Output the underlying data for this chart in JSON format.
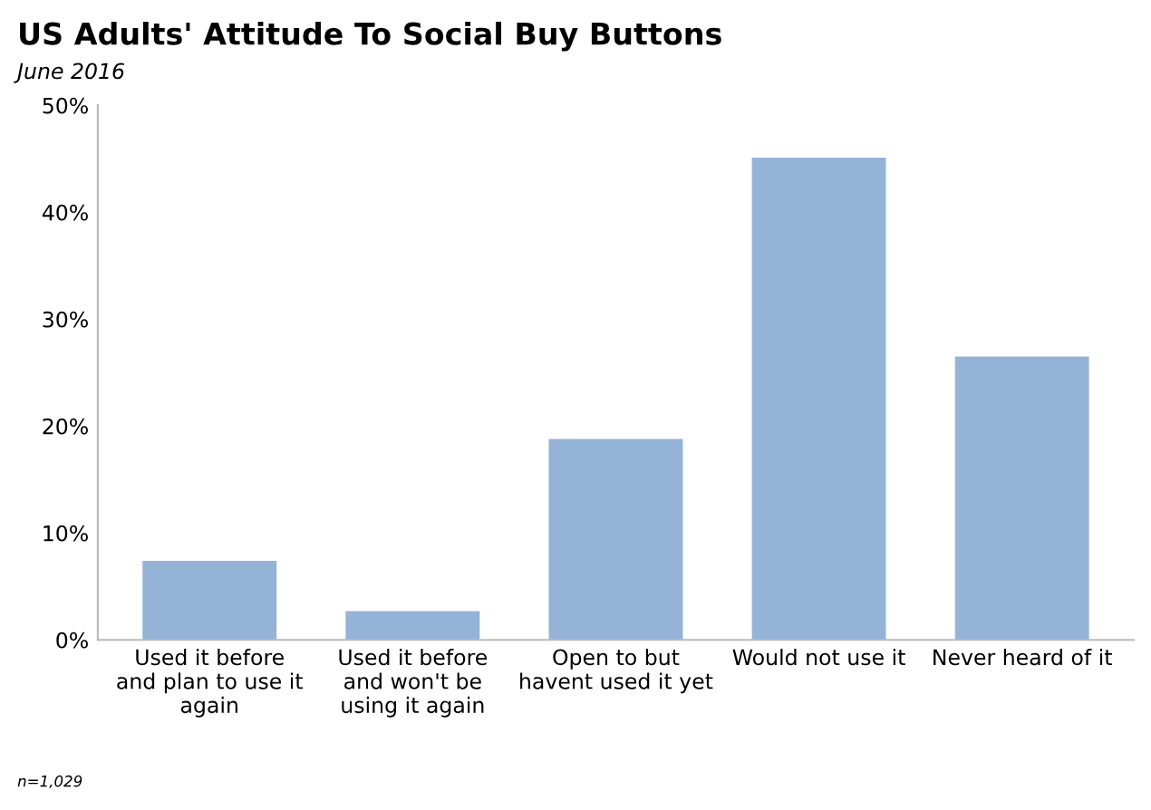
{
  "chart_data": {
    "type": "bar",
    "title": "US Adults' Attitude To Social Buy Buttons",
    "subtitle": "June 2016",
    "categories": [
      "Used it before\nand plan to use it\nagain",
      "Used it before\nand won't be\nusing it again",
      "Open to but\nhavent used it yet",
      "Would not use it",
      "Never heard of it"
    ],
    "values": [
      7.4,
      2.7,
      18.8,
      45.1,
      26.5
    ],
    "color": "#95b3d7",
    "ylim": [
      0,
      50
    ],
    "yticks": [
      {
        "value": 0,
        "label": "0%"
      },
      {
        "value": 10,
        "label": "10%"
      },
      {
        "value": 20,
        "label": "20%"
      },
      {
        "value": 30,
        "label": "30%"
      },
      {
        "value": 40,
        "label": "40%"
      },
      {
        "value": 50,
        "label": "50%"
      }
    ],
    "grid": false,
    "annotations": [
      "n=1,029"
    ]
  }
}
